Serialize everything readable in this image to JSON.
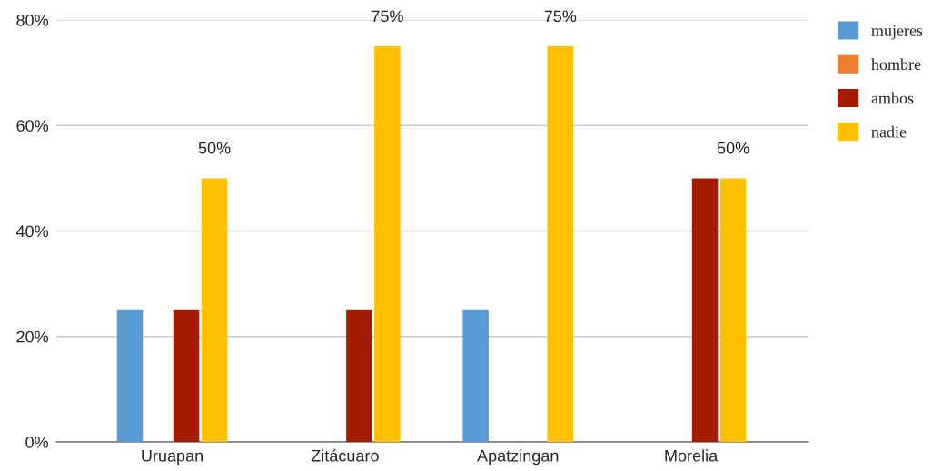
{
  "chart_data": {
    "type": "bar",
    "categories": [
      "Uruapan",
      "Zitácuaro",
      "Apatzingan",
      "Morelia"
    ],
    "series": [
      {
        "name": "mujeres",
        "color": "#5b9bd5",
        "values": [
          25,
          0,
          25,
          0
        ]
      },
      {
        "name": "hombre",
        "color": "#ed7d31",
        "values": [
          0,
          0,
          0,
          0
        ]
      },
      {
        "name": "ambos",
        "color": "#a61c00",
        "values": [
          25,
          25,
          0,
          50
        ]
      },
      {
        "name": "nadie",
        "color": "#ffc000",
        "values": [
          50,
          75,
          75,
          50
        ],
        "value_labels": [
          "50%",
          "75%",
          "75%",
          "50%"
        ]
      }
    ],
    "ylim": [
      0,
      80
    ],
    "yticks": [
      {
        "value": 0,
        "label": "0%"
      },
      {
        "value": 20,
        "label": "20%"
      },
      {
        "value": 40,
        "label": "40%"
      },
      {
        "value": 60,
        "label": "60%"
      },
      {
        "value": 80,
        "label": "80%"
      }
    ],
    "grid": "y",
    "legend": "right"
  }
}
